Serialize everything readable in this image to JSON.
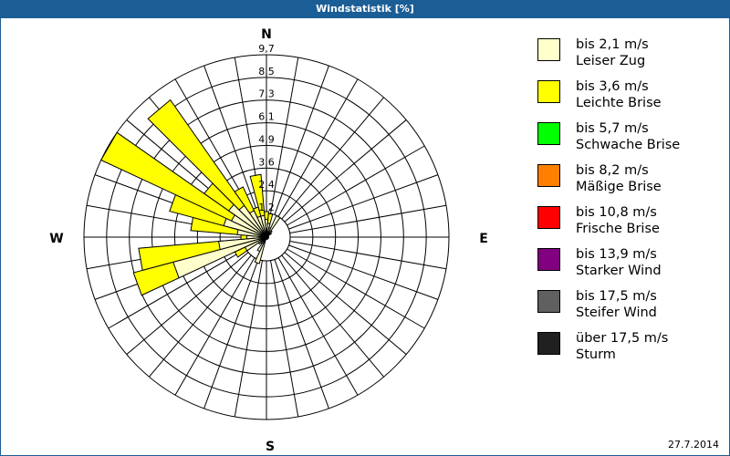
{
  "window": {
    "title": "Windstatistik [%]"
  },
  "footer": {
    "date": "27.7.2014"
  },
  "compass": {
    "N": "N",
    "E": "E",
    "S": "S",
    "W": "W"
  },
  "legend": [
    {
      "line1": "bis 2,1 m/s",
      "line2": "Leiser Zug",
      "color": "#ffffcc"
    },
    {
      "line1": "bis 3,6 m/s",
      "line2": "Leichte Brise",
      "color": "#ffff00"
    },
    {
      "line1": "bis 5,7 m/s",
      "line2": "Schwache Brise",
      "color": "#00ff00"
    },
    {
      "line1": "bis 8,2 m/s",
      "line2": "Mäßige Brise",
      "color": "#ff8000"
    },
    {
      "line1": "bis 10,8 m/s",
      "line2": "Frische Brise",
      "color": "#ff0000"
    },
    {
      "line1": "bis 13,9 m/s",
      "line2": "Starker Wind",
      "color": "#800080"
    },
    {
      "line1": "bis 17,5 m/s",
      "line2": "Steifer Wind",
      "color": "#606060"
    },
    {
      "line1": "über 17,5 m/s",
      "line2": "Sturm",
      "color": "#202020"
    }
  ],
  "chart_data": {
    "type": "wind-rose",
    "title": "Windstatistik [%]",
    "ring_labels": [
      "1,2",
      "2,4",
      "3,6",
      "4,9",
      "6,1",
      "7,3",
      "8,5",
      "9,7"
    ],
    "rmax": 9.7,
    "sector_width_deg": 10,
    "series": [
      "bis 2,1 m/s",
      "bis 3,6 m/s"
    ],
    "sectors": [
      {
        "dir": 0,
        "light": 0.9,
        "total": 1.3
      },
      {
        "dir": 10,
        "light": 0.7,
        "total": 1.2
      },
      {
        "dir": 20,
        "light": 0.5,
        "total": 0.5
      },
      {
        "dir": 30,
        "light": 1.2,
        "total": 1.2
      },
      {
        "dir": 40,
        "light": 0.4,
        "total": 0.4
      },
      {
        "dir": 50,
        "light": 0.3,
        "total": 0.3
      },
      {
        "dir": 200,
        "light": 1.4,
        "total": 1.4
      },
      {
        "dir": 210,
        "light": 0.8,
        "total": 0.8
      },
      {
        "dir": 220,
        "light": 0.4,
        "total": 0.4
      },
      {
        "dir": 230,
        "light": 0.5,
        "total": 0.5
      },
      {
        "dir": 240,
        "light": 1.2,
        "total": 1.8
      },
      {
        "dir": 250,
        "light": 5.1,
        "total": 7.3
      },
      {
        "dir": 260,
        "light": 2.5,
        "total": 6.8
      },
      {
        "dir": 270,
        "light": 1.0,
        "total": 1.3
      },
      {
        "dir": 280,
        "light": 1.5,
        "total": 4.0
      },
      {
        "dir": 290,
        "light": 2.3,
        "total": 5.3
      },
      {
        "dir": 300,
        "light": 2.0,
        "total": 9.7
      },
      {
        "dir": 310,
        "light": 2.4,
        "total": 4.0
      },
      {
        "dir": 320,
        "light": 2.0,
        "total": 8.9
      },
      {
        "dir": 330,
        "light": 1.5,
        "total": 2.9
      },
      {
        "dir": 340,
        "light": 1.1,
        "total": 1.6
      },
      {
        "dir": 350,
        "light": 1.1,
        "total": 3.3
      }
    ]
  }
}
